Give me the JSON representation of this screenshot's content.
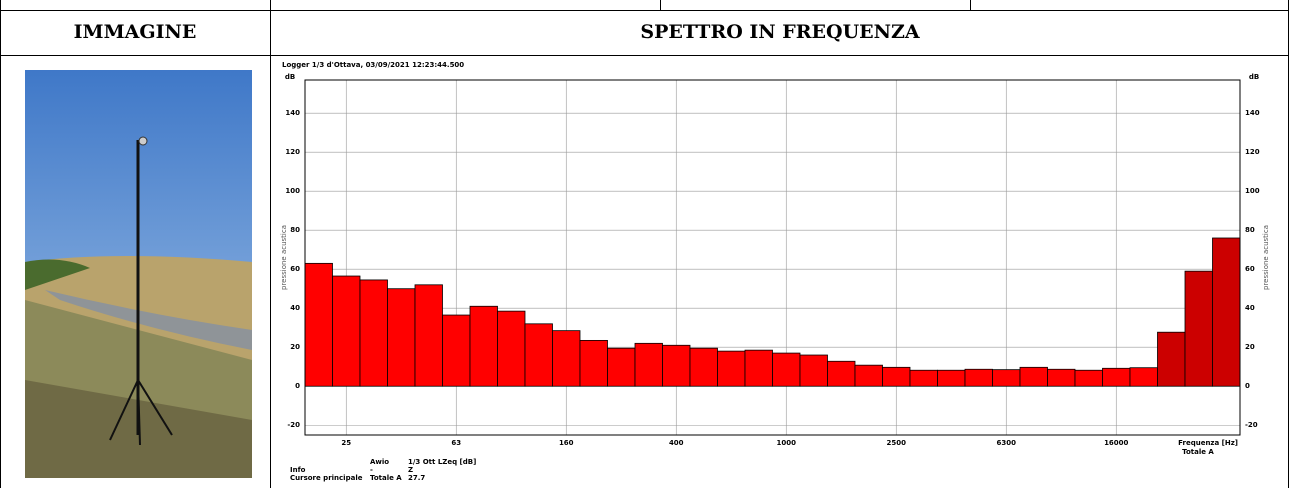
{
  "header": {
    "image": "IMMAGINE",
    "spectrum": "SPETTRO IN FREQUENZA"
  },
  "chart_data": {
    "type": "bar",
    "title": "Logger 1/3 d'Ottava, 03/09/2021 12:23:44.500",
    "y_unit": "dB",
    "ylabel": "pressione acustica",
    "xlabel": "Frequenza [Hz]",
    "total_label": "Totale A",
    "categories": [
      null,
      "25",
      null,
      null,
      null,
      "63",
      null,
      null,
      null,
      "160",
      null,
      null,
      null,
      "400",
      null,
      null,
      null,
      "1000",
      null,
      null,
      null,
      "2500",
      null,
      null,
      null,
      "6300",
      null,
      null,
      null,
      "16000",
      null,
      null,
      null,
      null
    ],
    "values": [
      63,
      56.5,
      54.5,
      50,
      52,
      36.5,
      41,
      38.5,
      32,
      28.5,
      23.5,
      19.5,
      22,
      21,
      19.5,
      18,
      18.5,
      17,
      16,
      12.8,
      10.8,
      9.7,
      8.2,
      8.2,
      8.7,
      8.5,
      9.7,
      8.7,
      8.2,
      9.2,
      9.5,
      27.7,
      59,
      76
    ],
    "colors": [
      "#ff0000",
      "#ff0000",
      "#ff0000",
      "#ff0000",
      "#ff0000",
      "#ff0000",
      "#ff0000",
      "#ff0000",
      "#ff0000",
      "#ff0000",
      "#ff0000",
      "#ff0000",
      "#ff0000",
      "#ff0000",
      "#ff0000",
      "#ff0000",
      "#ff0000",
      "#ff0000",
      "#ff0000",
      "#ff0000",
      "#ff0000",
      "#ff0000",
      "#ff0000",
      "#ff0000",
      "#ff0000",
      "#ff0000",
      "#ff0000",
      "#ff0000",
      "#ff0000",
      "#ff0000",
      "#ff0000",
      "#cc0000",
      "#cc0000",
      "#cc0000"
    ],
    "ylim": [
      -25,
      157
    ],
    "yticks": [
      -20,
      0,
      20,
      40,
      60,
      80,
      100,
      120,
      140
    ],
    "grid": true,
    "info": [
      [
        "",
        "Awio",
        "1/3 Ott LZeq [dB]"
      ],
      [
        "Info",
        "-",
        "Z"
      ],
      [
        "Cursore principale",
        "Totale A",
        "27.7"
      ]
    ]
  }
}
